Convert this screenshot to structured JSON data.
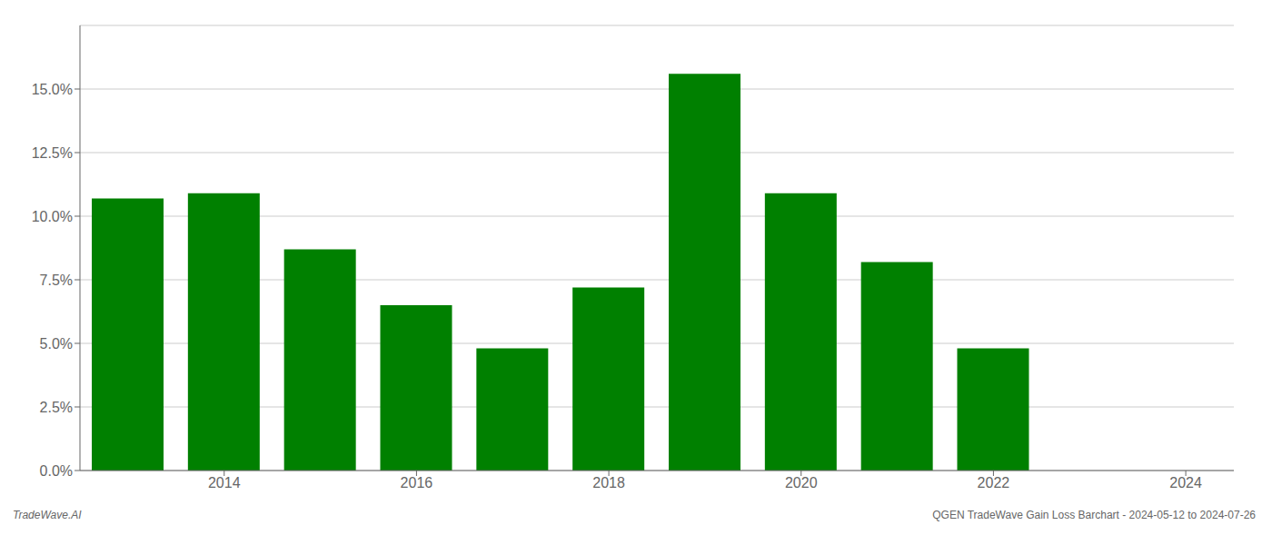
{
  "chart_data": {
    "type": "bar",
    "x": [
      2013,
      2014,
      2015,
      2016,
      2017,
      2018,
      2019,
      2020,
      2021,
      2022,
      2023
    ],
    "values": [
      0.107,
      0.109,
      0.087,
      0.065,
      0.048,
      0.072,
      0.156,
      0.109,
      0.082,
      0.048,
      0.0
    ],
    "color": "#008000",
    "xlim": [
      2012.5,
      2024.5
    ],
    "xticks": [
      2014,
      2016,
      2018,
      2020,
      2022,
      2024
    ],
    "ylim": [
      0,
      0.175
    ],
    "yticks": [
      {
        "value": 0.0,
        "label": "0.0%"
      },
      {
        "value": 0.025,
        "label": "2.5%"
      },
      {
        "value": 0.05,
        "label": "5.0%"
      },
      {
        "value": 0.075,
        "label": "7.5%"
      },
      {
        "value": 0.1,
        "label": "10.0%"
      },
      {
        "value": 0.125,
        "label": "12.5%"
      },
      {
        "value": 0.15,
        "label": "15.0%"
      }
    ],
    "grid": true,
    "annotations": [
      "TradeWave.AI",
      "QGEN TradeWave Gain Loss Barchart - 2024-05-12 to 2024-07-26"
    ]
  }
}
